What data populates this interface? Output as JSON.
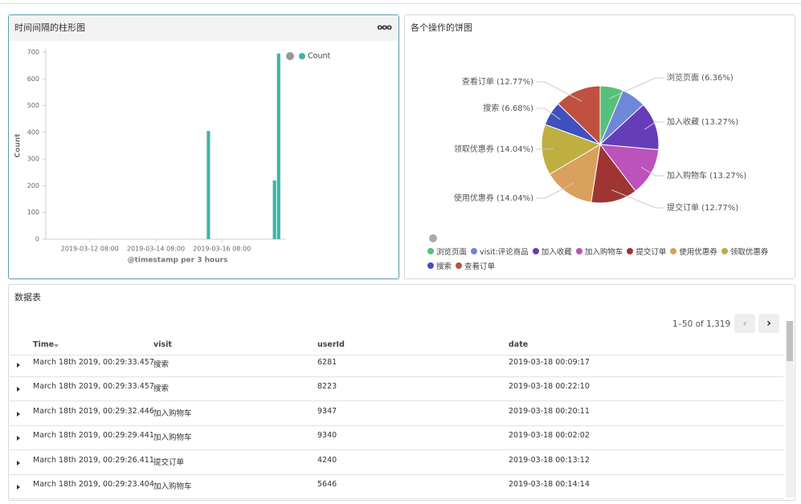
{
  "panels": [
    {
      "title": "时间间隔的柱形图"
    },
    {
      "title": "各个操作的饼图"
    },
    {
      "title": "数据表"
    }
  ],
  "chart_data": [
    {
      "type": "bar",
      "x": [
        "2019-03-15 21:00",
        "2019-03-17 21:00",
        "2019-03-18 00:00"
      ],
      "series": [
        {
          "name": "Count",
          "color": "#3fb3a8",
          "values": [
            405,
            220,
            695
          ]
        }
      ],
      "xlabel": "@timestamp per 3 hours",
      "ylabel": "Count",
      "xlim": [
        "2019-03-11 00:00",
        "2019-03-18 06:00"
      ],
      "xticks": [
        "2019-03-12 08:00",
        "2019-03-14 08:00",
        "2019-03-16 08:00"
      ],
      "ylim": [
        0,
        700
      ],
      "yticks": [
        0,
        100,
        200,
        300,
        400,
        500,
        600,
        700
      ],
      "legend": "top-right"
    },
    {
      "type": "pie",
      "categories": [
        "浏览页面",
        "visit:评论商品",
        "加入收藏",
        "加入购物车",
        "提交订单",
        "使用优惠券",
        "领取优惠券",
        "搜索",
        "查看订单"
      ],
      "values": [
        6.36,
        6.8,
        13.27,
        13.27,
        12.77,
        14.04,
        14.04,
        6.68,
        12.77
      ],
      "value_labels": [
        "浏览页面 (6.36%)",
        null,
        "加入收藏 (13.27%)",
        "加入购物车 (13.27%)",
        "提交订单 (12.77%)",
        "使用优惠券 (14.04%)",
        "领取优惠券 (14.04%)",
        "搜索 (6.68%)",
        "查看订单 (12.77%)"
      ],
      "colors": [
        "#57c17b",
        "#6f87d8",
        "#663db8",
        "#bc52bc",
        "#9e3533",
        "#daa05d",
        "#bfaf40",
        "#4050bf",
        "#c0503f"
      ],
      "legend": "bottom-left"
    }
  ],
  "table": {
    "pagination": "1–50 of 1,319",
    "columns": [
      "Time",
      "visit",
      "userId",
      "date"
    ],
    "rows": [
      [
        "March 18th 2019, 00:29:33.457",
        "搜索",
        "6281",
        "2019-03-18 00:09:17"
      ],
      [
        "March 18th 2019, 00:29:33.457",
        "搜索",
        "8223",
        "2019-03-18 00:22:10"
      ],
      [
        "March 18th 2019, 00:29:32.446",
        "加入购物车",
        "9347",
        "2019-03-18 00:20:11"
      ],
      [
        "March 18th 2019, 00:29:29.441",
        "加入购物车",
        "9340",
        "2019-03-18 00:02:02"
      ],
      [
        "March 18th 2019, 00:29:26.411",
        "提交订单",
        "4240",
        "2019-03-18 00:13:12"
      ],
      [
        "March 18th 2019, 00:29:23.404",
        "加入购物车",
        "5646",
        "2019-03-18 00:14:14"
      ]
    ]
  }
}
